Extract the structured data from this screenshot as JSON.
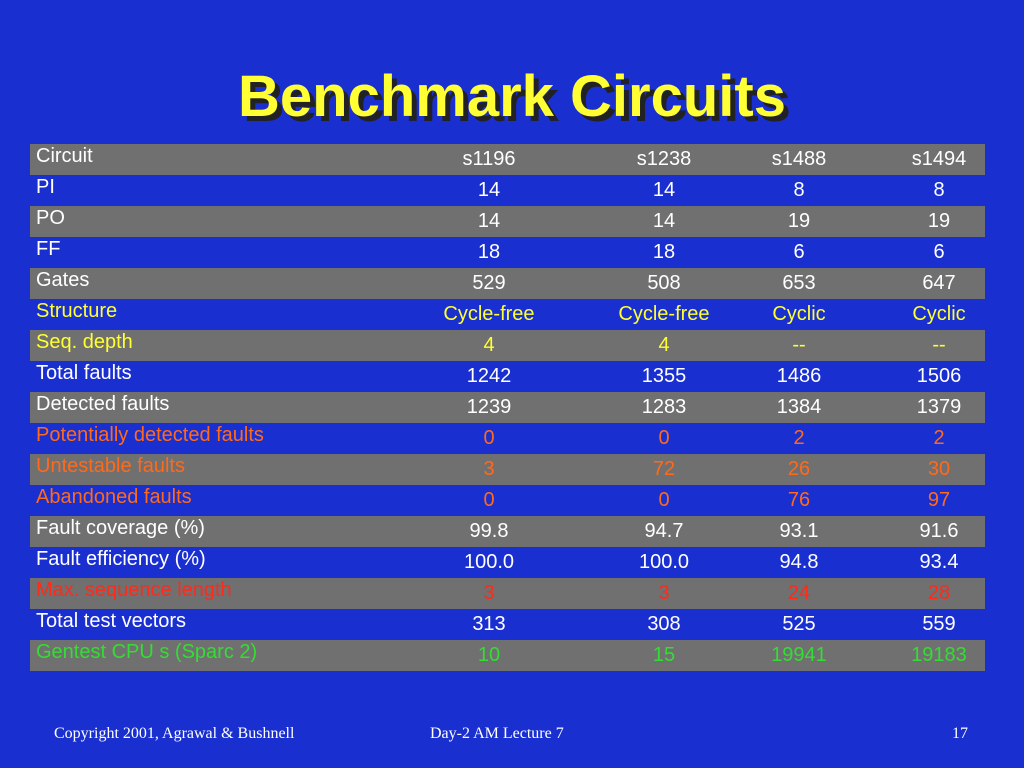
{
  "slide": {
    "title": "Benchmark Circuits",
    "footer_left": "Copyright 2001, Agrawal & Bushnell",
    "footer_center": "Day-2 AM Lecture 7",
    "footer_right": "17"
  },
  "colors": {
    "background": "#1a2fd0",
    "title": "#ffff33",
    "white": "#ffffff",
    "yellow": "#ffff33",
    "orange": "#ff6a1a",
    "red": "#ff2a1a",
    "green": "#33dd33",
    "row_shade": "#707070"
  },
  "table": {
    "header": {
      "label": "Circuit",
      "values": [
        "s1196",
        "s1238",
        "s1488",
        "s1494"
      ]
    },
    "rows": [
      {
        "label": "PI",
        "values": [
          "14",
          "14",
          "8",
          "8"
        ]
      },
      {
        "label": "PO",
        "values": [
          "14",
          "14",
          "19",
          "19"
        ]
      },
      {
        "label": "FF",
        "values": [
          "18",
          "18",
          "6",
          "6"
        ]
      },
      {
        "label": "Gates",
        "values": [
          "529",
          "508",
          "653",
          "647"
        ]
      },
      {
        "label": "Structure",
        "values": [
          "Cycle-free",
          "Cycle-free",
          "Cyclic",
          "Cyclic"
        ]
      },
      {
        "label": "Seq. depth",
        "values": [
          "4",
          "4",
          "--",
          "--"
        ]
      },
      {
        "label": "Total faults",
        "values": [
          "1242",
          "1355",
          "1486",
          "1506"
        ]
      },
      {
        "label": "Detected faults",
        "values": [
          "1239",
          "1283",
          "1384",
          "1379"
        ]
      },
      {
        "label": "Potentially detected faults",
        "values": [
          "0",
          "0",
          "2",
          "2"
        ]
      },
      {
        "label": "Untestable faults",
        "values": [
          "3",
          "72",
          "26",
          "30"
        ]
      },
      {
        "label": "Abandoned faults",
        "values": [
          "0",
          "0",
          "76",
          "97"
        ]
      },
      {
        "label": "Fault coverage (%)",
        "values": [
          "99.8",
          "94.7",
          "93.1",
          "91.6"
        ]
      },
      {
        "label": "Fault efficiency (%)",
        "values": [
          "100.0",
          "100.0",
          "94.8",
          "93.4"
        ]
      },
      {
        "label": "Max. sequence length",
        "values": [
          "3",
          "3",
          "24",
          "28"
        ]
      },
      {
        "label": "Total test vectors",
        "values": [
          "313",
          "308",
          "525",
          "559"
        ]
      },
      {
        "label": "Gentest CPU s (Sparc 2)",
        "values": [
          "10",
          "15",
          "19941",
          "19183"
        ]
      }
    ]
  }
}
